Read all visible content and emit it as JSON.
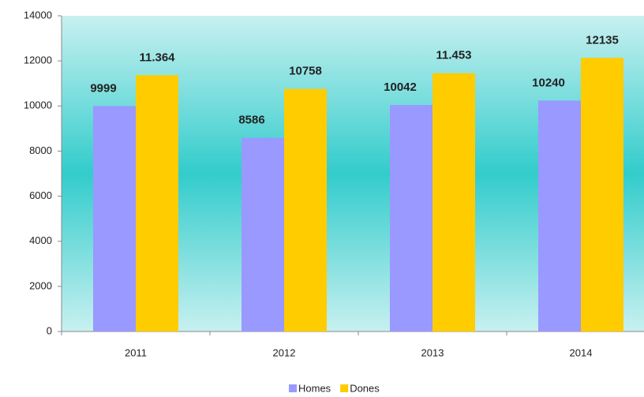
{
  "chart_data": {
    "type": "bar",
    "categories": [
      "2011",
      "2012",
      "2013",
      "2014"
    ],
    "series": [
      {
        "name": "Homes",
        "color": "#9999ff",
        "values": [
          9999,
          8586,
          10042,
          10240
        ]
      },
      {
        "name": "Dones",
        "color": "#ffcc00",
        "values": [
          11364,
          10758,
          11453,
          12135
        ],
        "value_labels": [
          "11.364",
          "10758",
          "11.453",
          "12135"
        ]
      }
    ],
    "ylim": [
      0,
      14000
    ],
    "yticks": [
      0,
      2000,
      4000,
      6000,
      8000,
      10000,
      12000,
      14000
    ],
    "legend": "bottom"
  }
}
